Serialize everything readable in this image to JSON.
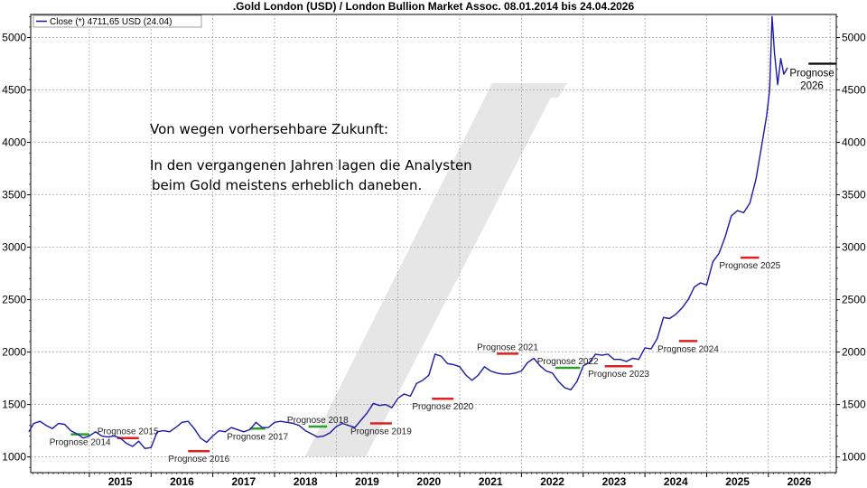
{
  "chart_data": {
    "type": "line",
    "title": ".Gold London (USD) / London Bullion Market Assoc. 08.01.2014 bis 24.04.2026",
    "legend": "Close (*) 4711,65 USD (24.04)",
    "legend_position": "top-left",
    "series_color": "#1a1aa8",
    "grid": true,
    "xlim": [
      2014.05,
      2027.1
    ],
    "ylim": [
      850,
      5220
    ],
    "y_ticks": [
      1000,
      1500,
      2000,
      2500,
      3000,
      3500,
      4000,
      4500,
      5000
    ],
    "x_ticks": [
      2015,
      2016,
      2017,
      2018,
      2019,
      2020,
      2021,
      2022,
      2023,
      2024,
      2025,
      2026
    ],
    "series": [
      {
        "x": [
          2014.02,
          2014.1,
          2014.2,
          2014.3,
          2014.4,
          2014.5,
          2014.6,
          2014.7,
          2014.8,
          2014.9,
          2015.0,
          2015.1,
          2015.2,
          2015.3,
          2015.4,
          2015.5,
          2015.6,
          2015.7,
          2015.8,
          2015.9,
          2016.0,
          2016.1,
          2016.2,
          2016.3,
          2016.4,
          2016.5,
          2016.6,
          2016.7,
          2016.8,
          2016.9,
          2017.0,
          2017.1,
          2017.2,
          2017.3,
          2017.4,
          2017.5,
          2017.6,
          2017.7,
          2017.8,
          2017.9,
          2018.0,
          2018.1,
          2018.2,
          2018.3,
          2018.4,
          2018.5,
          2018.6,
          2018.7,
          2018.8,
          2018.9,
          2019.0,
          2019.1,
          2019.2,
          2019.3,
          2019.4,
          2019.5,
          2019.6,
          2019.7,
          2019.8,
          2019.9,
          2020.0,
          2020.1,
          2020.2,
          2020.3,
          2020.4,
          2020.5,
          2020.6,
          2020.7,
          2020.8,
          2020.9,
          2021.0,
          2021.1,
          2021.2,
          2021.3,
          2021.4,
          2021.5,
          2021.6,
          2021.7,
          2021.8,
          2021.9,
          2022.0,
          2022.1,
          2022.2,
          2022.3,
          2022.4,
          2022.5,
          2022.6,
          2022.7,
          2022.8,
          2022.9,
          2023.0,
          2023.1,
          2023.2,
          2023.3,
          2023.4,
          2023.5,
          2023.6,
          2023.7,
          2023.8,
          2023.9,
          2024.0,
          2024.1,
          2024.2,
          2024.3,
          2024.4,
          2024.5,
          2024.6,
          2024.7,
          2024.8,
          2024.9,
          2025.0,
          2025.1,
          2025.2,
          2025.3,
          2025.4,
          2025.5,
          2025.6,
          2025.7,
          2025.8,
          2025.9,
          2025.97,
          2026.02,
          2026.06,
          2026.1,
          2026.15,
          2026.2,
          2026.25,
          2026.31
        ],
        "y": [
          1240,
          1320,
          1340,
          1300,
          1270,
          1320,
          1310,
          1250,
          1220,
          1180,
          1200,
          1240,
          1200,
          1190,
          1200,
          1180,
          1130,
          1100,
          1150,
          1080,
          1090,
          1240,
          1250,
          1240,
          1280,
          1330,
          1340,
          1270,
          1180,
          1140,
          1200,
          1250,
          1240,
          1280,
          1260,
          1240,
          1260,
          1330,
          1280,
          1280,
          1330,
          1340,
          1330,
          1320,
          1300,
          1250,
          1220,
          1190,
          1200,
          1230,
          1290,
          1320,
          1300,
          1280,
          1350,
          1420,
          1510,
          1490,
          1500,
          1470,
          1560,
          1600,
          1580,
          1700,
          1730,
          1780,
          1980,
          1960,
          1890,
          1880,
          1860,
          1780,
          1730,
          1780,
          1860,
          1820,
          1800,
          1790,
          1790,
          1800,
          1820,
          1900,
          1940,
          1870,
          1820,
          1800,
          1720,
          1660,
          1640,
          1720,
          1870,
          1900,
          1980,
          1970,
          1980,
          1930,
          1930,
          1910,
          1940,
          1930,
          2040,
          2030,
          2130,
          2330,
          2320,
          2360,
          2420,
          2500,
          2620,
          2660,
          2640,
          2860,
          2940,
          3100,
          3300,
          3350,
          3330,
          3420,
          3650,
          4000,
          4250,
          4500,
          5200,
          4850,
          4550,
          4800,
          4650,
          4711.65
        ]
      }
    ],
    "forecasts": [
      {
        "label": "Prognose 2014",
        "x_start": 2014.7,
        "x_end": 2015.0,
        "value": 1215,
        "color": "#2aa02a",
        "side": "below"
      },
      {
        "label": "Prognose 2015",
        "x_start": 2015.45,
        "x_end": 2015.8,
        "value": 1180,
        "color": "#e02020",
        "side": "above"
      },
      {
        "label": "Prognose 2016",
        "x_start": 2016.6,
        "x_end": 2016.95,
        "value": 1055,
        "color": "#e02020",
        "side": "below"
      },
      {
        "label": "Prognose 2017",
        "x_start": 2017.6,
        "x_end": 2017.85,
        "value": 1270,
        "color": "#2aa02a",
        "side": "below"
      },
      {
        "label": "Prognose 2018",
        "x_start": 2018.55,
        "x_end": 2018.85,
        "value": 1290,
        "color": "#2aa02a",
        "side": "above"
      },
      {
        "label": "Prognose 2019",
        "x_start": 2019.55,
        "x_end": 2019.9,
        "value": 1320,
        "color": "#e02020",
        "side": "below"
      },
      {
        "label": "Prognose 2020",
        "x_start": 2020.55,
        "x_end": 2020.9,
        "value": 1555,
        "color": "#e02020",
        "side": "below"
      },
      {
        "label": "Prognose 2021",
        "x_start": 2021.6,
        "x_end": 2021.95,
        "value": 1985,
        "color": "#e02020",
        "side": "above"
      },
      {
        "label": "Prognose 2022",
        "x_start": 2022.55,
        "x_end": 2022.95,
        "value": 1850,
        "color": "#2aa02a",
        "side": "above"
      },
      {
        "label": "Prognose 2023",
        "x_start": 2023.35,
        "x_end": 2023.8,
        "value": 1865,
        "color": "#e02020",
        "side": "below"
      },
      {
        "label": "Prognose 2024",
        "x_start": 2024.55,
        "x_end": 2024.85,
        "value": 2105,
        "color": "#e02020",
        "side": "below"
      },
      {
        "label": "Prognose 2025",
        "x_start": 2025.55,
        "x_end": 2025.85,
        "value": 2900,
        "color": "#e02020",
        "side": "below"
      }
    ],
    "forecast_2026": {
      "label_line1": "Prognose",
      "label_line2": "2026",
      "x_start": 2026.65,
      "x_end": 2027.1,
      "value": 4750,
      "color": "#000000"
    },
    "annotation": {
      "line1": "Von wegen vorhersehbare Zukunft:",
      "line2": "In den vergangenen Jahren lagen die Analysten",
      "line3": "beim Gold meistens erheblich daneben."
    }
  }
}
